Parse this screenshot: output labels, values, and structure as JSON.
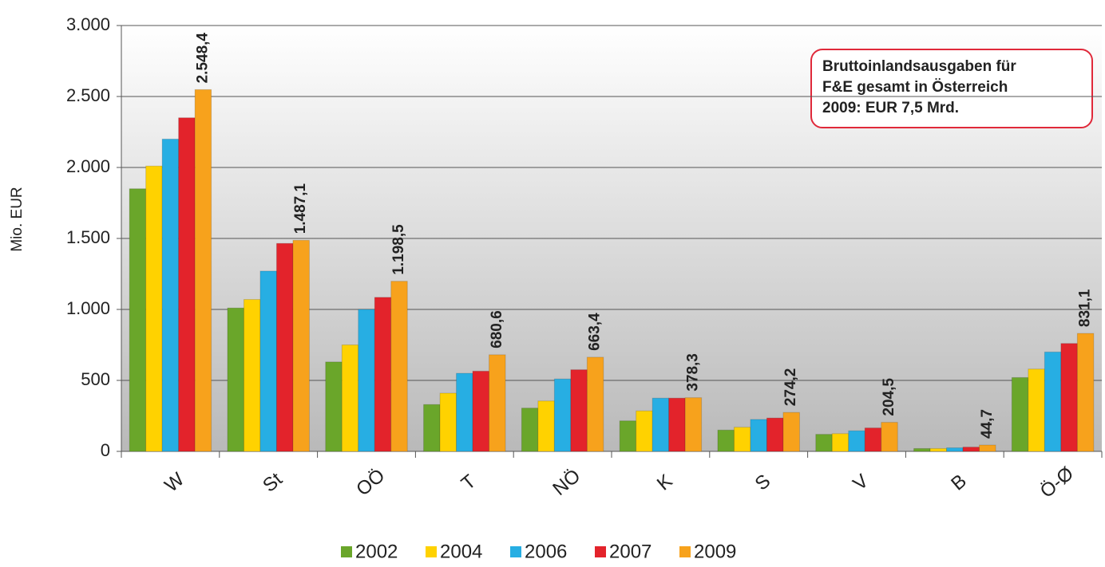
{
  "chart_data": {
    "type": "bar",
    "y_label": "Mio. EUR",
    "annotation": [
      "Bruttoinlandsausgaben für",
      "F&E gesamt in Österreich",
      "2009: EUR 7,5 Mrd."
    ],
    "categories": [
      "W",
      "St",
      "OÖ",
      "T",
      "NÖ",
      "K",
      "S",
      "V",
      "B",
      "Ö-Ø"
    ],
    "series": [
      {
        "name": "2002",
        "color": "#6aa62a",
        "values": [
          1850,
          1010,
          630,
          330,
          305,
          215,
          150,
          120,
          20,
          520
        ]
      },
      {
        "name": "2004",
        "color": "#ffd200",
        "values": [
          2010,
          1070,
          750,
          410,
          355,
          285,
          170,
          125,
          20,
          580
        ]
      },
      {
        "name": "2006",
        "color": "#27aee3",
        "values": [
          2200,
          1270,
          1000,
          550,
          510,
          375,
          225,
          145,
          25,
          700
        ]
      },
      {
        "name": "2007",
        "color": "#e3232b",
        "values": [
          2350,
          1465,
          1085,
          565,
          575,
          375,
          235,
          165,
          30,
          760
        ]
      },
      {
        "name": "2009",
        "color": "#f7a21c",
        "values": [
          2548.4,
          1487.1,
          1198.5,
          680.6,
          663.4,
          378.3,
          274.2,
          204.5,
          44.7,
          831.1
        ],
        "value_labels": [
          "2.548,4",
          "1.487,1",
          "1.198,5",
          "680,6",
          "663,4",
          "378,3",
          "274,2",
          "204,5",
          "44,7",
          "831,1"
        ]
      }
    ],
    "ylim": [
      0,
      3000
    ],
    "yticks": [
      0,
      500,
      {
        "value": 1000,
        "label": "1.000"
      },
      {
        "value": 1500,
        "label": "1.500"
      },
      {
        "value": 2000,
        "label": "2.000"
      },
      {
        "value": 2500,
        "label": "2.500"
      },
      {
        "value": 3000,
        "label": "3.000"
      }
    ],
    "grid": true,
    "legend": "bottom"
  }
}
